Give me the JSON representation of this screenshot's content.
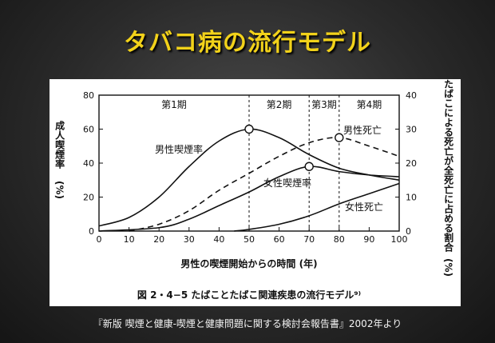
{
  "slide": {
    "title": "タバコ病の流行モデル",
    "caption": "『新版 喫煙と健康-喫煙と健康問題に関する検討会報告書』2002年より"
  },
  "chart_data": {
    "type": "line",
    "title": "",
    "figure_caption": "図 2・4−5 たばことたばこ関連疾患の流行モデル⁹⁾",
    "xlabel": "男性の喫煙開始からの時間 (年)",
    "ylabel_left": "成人喫煙率",
    "ylabel_left_unit": "(%)",
    "ylabel_right": "たばこによる死亡が全死亡に占める割合",
    "ylabel_right_unit": "(%)",
    "xlim": [
      0,
      100
    ],
    "ylim_left": [
      0,
      80
    ],
    "ylim_right": [
      0,
      40
    ],
    "x_ticks": [
      0,
      10,
      20,
      30,
      40,
      50,
      60,
      70,
      80,
      90,
      100
    ],
    "y_ticks_left": [
      0,
      20,
      40,
      60,
      80
    ],
    "y_ticks_right": [
      0,
      10,
      20,
      30,
      40
    ],
    "grid": false,
    "phases": [
      {
        "label": "第1期",
        "start": 0,
        "end": 50
      },
      {
        "label": "第2期",
        "start": 50,
        "end": 70
      },
      {
        "label": "第3期",
        "start": 70,
        "end": 80
      },
      {
        "label": "第4期",
        "start": 80,
        "end": 100
      }
    ],
    "series": [
      {
        "name": "男性喫煙率",
        "axis": "left",
        "style": "solid",
        "x": [
          0,
          10,
          20,
          30,
          40,
          50,
          60,
          70,
          80,
          90,
          100
        ],
        "y": [
          3,
          8,
          20,
          38,
          53,
          60,
          55,
          45,
          37,
          33,
          30
        ],
        "peak": [
          50,
          60
        ]
      },
      {
        "name": "女性喫煙率",
        "axis": "left",
        "style": "solid",
        "x": [
          0,
          20,
          30,
          40,
          50,
          60,
          70,
          80,
          90,
          100
        ],
        "y": [
          0,
          2,
          7,
          15,
          23,
          32,
          38,
          35,
          33,
          32
        ],
        "peak": [
          70,
          38
        ]
      },
      {
        "name": "男性死亡",
        "axis": "right",
        "style": "dashed",
        "x": [
          10,
          20,
          30,
          40,
          50,
          60,
          70,
          80,
          90,
          100
        ],
        "y": [
          0,
          2,
          6,
          12,
          17,
          22,
          26,
          27.5,
          25,
          22
        ],
        "peak": [
          80,
          27.5
        ]
      },
      {
        "name": "女性死亡",
        "axis": "right",
        "style": "solid",
        "x": [
          45,
          50,
          60,
          70,
          80,
          90,
          100
        ],
        "y": [
          0,
          0.5,
          2,
          4.5,
          8,
          11,
          14
        ]
      }
    ]
  }
}
